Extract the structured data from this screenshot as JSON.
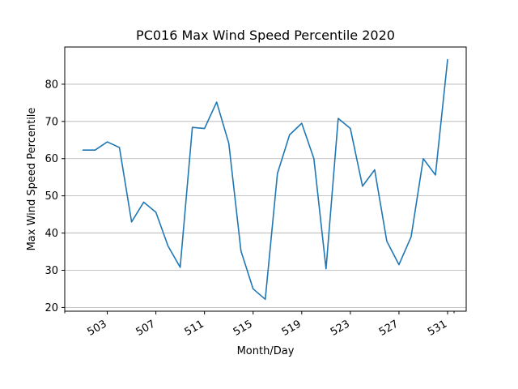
{
  "chart_data": {
    "type": "line",
    "title": "PC016 Max Wind Speed Percentile 2020",
    "xlabel": "Month/Day",
    "ylabel": "Max Wind Speed Percentile",
    "x_tick_labels": [
      "503",
      "507",
      "511",
      "515",
      "519",
      "523",
      "527",
      "531"
    ],
    "y_ticks": [
      20,
      30,
      40,
      50,
      60,
      70,
      80
    ],
    "ylim": [
      19,
      90
    ],
    "grid": "y-axis only",
    "series": [
      {
        "x": [
          "5/1",
          "5/2",
          "5/3",
          "5/4",
          "5/5",
          "5/6",
          "5/7",
          "5/8",
          "5/9",
          "5/10",
          "5/11",
          "5/12",
          "5/13",
          "5/14",
          "5/15",
          "5/16",
          "5/17",
          "5/18",
          "5/19",
          "5/20",
          "5/21",
          "5/22",
          "5/23",
          "5/24",
          "5/25",
          "5/26",
          "5/27",
          "5/28",
          "5/29",
          "5/30",
          "5/31"
        ],
        "values": [
          62.3,
          62.3,
          64.5,
          63.0,
          43.0,
          48.3,
          45.6,
          36.5,
          30.8,
          68.4,
          68.1,
          75.2,
          64.1,
          35.2,
          25.0,
          22.2,
          56.0,
          66.4,
          69.5,
          60.0,
          30.4,
          70.8,
          68.1,
          52.6,
          57.0,
          37.8,
          31.5,
          39.0,
          60.0,
          55.6,
          86.6
        ],
        "color": "#1f77b4"
      }
    ]
  }
}
